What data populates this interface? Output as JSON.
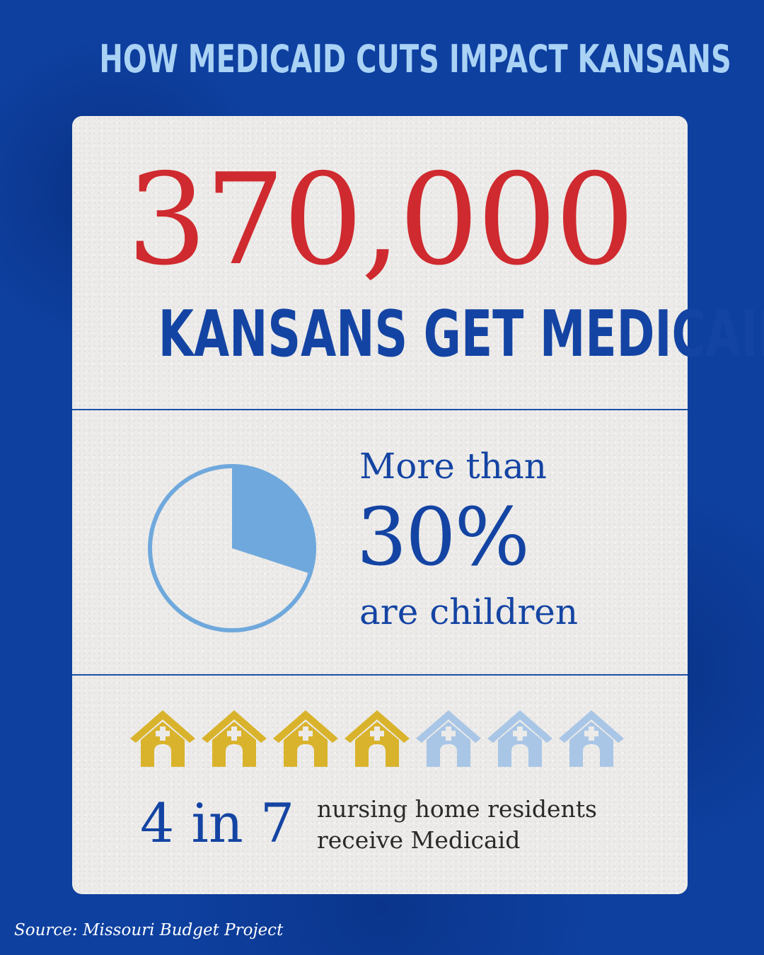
{
  "headline": "HOW MEDICAID CUTS IMPACT KANSANS",
  "stat1": {
    "number": "370,000",
    "label": "KANSANS GET MEDICAID"
  },
  "stat2": {
    "prefix": "More than",
    "percent": "30%",
    "suffix": "are children",
    "pie_fraction": 0.3,
    "pie_color": "#6fa8dc"
  },
  "stat3": {
    "ratio": "4 in 7",
    "text_line1": "nursing home residents",
    "text_line2": "receive Medicaid",
    "houses_total": 7,
    "houses_highlighted": 4,
    "highlight_color": "#d9b32c",
    "muted_color": "#a9c6e6"
  },
  "source": "Source: Missouri Budget Project",
  "colors": {
    "background": "#0e40a0",
    "headline": "#a9d2f5",
    "big_number": "#cf2a2f",
    "primary_text": "#1444a3"
  }
}
